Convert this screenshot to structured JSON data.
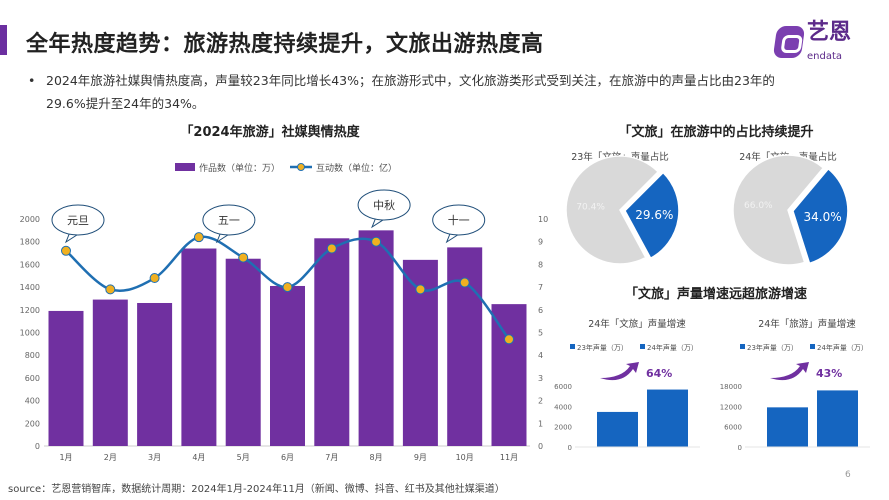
{
  "header": {
    "title": "全年热度趋势：旅游热度持续提升，文旅出游热度高",
    "logo_cn": "艺恩",
    "logo_en": "endata",
    "accent": "#6b2fa0"
  },
  "bullet": {
    "marker": "•",
    "text": "2024年旅游社媒舆情热度高，声量较23年同比增长43%；在旅游形式中，文化旅游类形式受到关注，在旅游中的声量占比由23年的29.6%提升至24年的34%。"
  },
  "source": "source：艺恩营销智库，数据统计周期：2024年1月-2024年11月（新闻、微博、抖音、红书及其他社媒渠道）",
  "page_number": "6",
  "chart_data": [
    {
      "type": "bar+line",
      "title": "「2024年旅游」社媒舆情热度",
      "categories": [
        "1月",
        "2月",
        "3月",
        "4月",
        "5月",
        "6月",
        "7月",
        "8月",
        "9月",
        "10月",
        "11月"
      ],
      "series": [
        {
          "name": "作品数（单位：万）",
          "type": "bar",
          "axis": "left",
          "color": "#7030a0",
          "values": [
            1190,
            1290,
            1260,
            1740,
            1650,
            1410,
            1830,
            1900,
            1640,
            1750,
            1250
          ]
        },
        {
          "name": "互动数（单位：亿）",
          "type": "line",
          "axis": "right",
          "color": "#1f6fb2",
          "marker_color": "#f0b020",
          "values": [
            8.6,
            6.9,
            7.4,
            9.2,
            8.3,
            7.0,
            8.7,
            9.0,
            6.9,
            7.2,
            4.7
          ]
        }
      ],
      "ylim_left": [
        0,
        2000
      ],
      "yticks_left": [
        0,
        200,
        400,
        600,
        800,
        1000,
        1200,
        1400,
        1600,
        1800,
        2000
      ],
      "ylim_right": [
        0,
        10
      ],
      "yticks_right": [
        0,
        1,
        2,
        3,
        4,
        5,
        6,
        7,
        8,
        9,
        10
      ],
      "annotations": [
        {
          "label": "元旦",
          "month": "1月"
        },
        {
          "label": "五一",
          "month": "4月"
        },
        {
          "label": "中秋",
          "month": "8月"
        },
        {
          "label": "十一",
          "month": "10月"
        }
      ],
      "legend": "top"
    },
    {
      "section_title": "「文旅」在旅游中的占比持续提升"
    },
    {
      "type": "pie",
      "title": "23年「文旅」声量占比",
      "slices": [
        {
          "label": "29.6%",
          "value": 29.6,
          "color": "#1565c0"
        },
        {
          "label": "70.4%",
          "value": 70.4,
          "color": "#d9d9d9"
        }
      ]
    },
    {
      "type": "pie",
      "title": "24年「文旅」声量占比",
      "slices": [
        {
          "label": "34.0%",
          "value": 34.0,
          "color": "#1565c0"
        },
        {
          "label": "66.0%",
          "value": 66.0,
          "color": "#d9d9d9"
        }
      ]
    },
    {
      "section_title": "「文旅」声量增速远超旅游增速"
    },
    {
      "type": "bar",
      "title": "24年「文旅」声量增速",
      "categories": [
        "23年声量（万）",
        "24年声量（万）"
      ],
      "values": [
        3450,
        5650
      ],
      "ylim": [
        0,
        6000
      ],
      "yticks": [
        0,
        2000,
        4000,
        6000
      ],
      "growth": "64%",
      "color": "#1565c0",
      "legend": "top"
    },
    {
      "type": "bar",
      "title": "24年「旅游」声量增速",
      "categories": [
        "23年声量（万）",
        "24年声量（万）"
      ],
      "values": [
        11700,
        16700
      ],
      "ylim": [
        0,
        18000
      ],
      "yticks": [
        0,
        6000,
        12000,
        18000
      ],
      "growth": "43%",
      "color": "#1565c0",
      "legend": "top"
    }
  ]
}
